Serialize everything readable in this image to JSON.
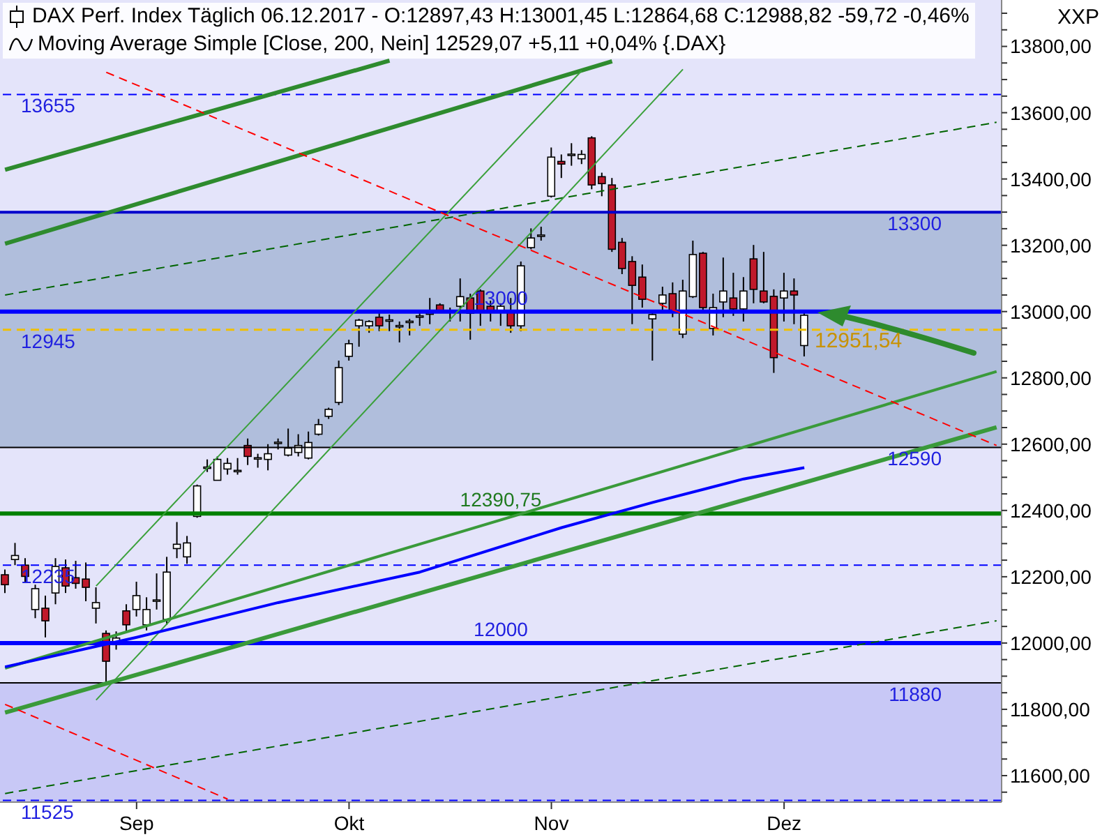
{
  "chart_data": {
    "type": "candlestick",
    "title": "DAX Perf. Index Täglich 06.12.2017 - O:12897,43 H:13001,45 L:12864,68 C:12988,82 -59,72 -0,46%",
    "subtitle": "Moving Average Simple [Close, 200, Nein] 12529,07 +5,11 +0,04% {.DAX}",
    "ylabel": "XXP",
    "categories": [
      null,
      null,
      null,
      null,
      null,
      null,
      null,
      null,
      null,
      null,
      null,
      null,
      null,
      "Sep",
      null,
      null,
      null,
      null,
      null,
      null,
      null,
      null,
      null,
      null,
      null,
      null,
      null,
      null,
      null,
      null,
      null,
      null,
      null,
      null,
      "Okt",
      null,
      null,
      null,
      null,
      null,
      null,
      null,
      null,
      null,
      null,
      null,
      null,
      null,
      null,
      null,
      null,
      null,
      null,
      null,
      "Nov",
      null,
      null,
      null,
      null,
      null,
      null,
      null,
      null,
      null,
      null,
      null,
      null,
      null,
      null,
      null,
      null,
      null,
      null,
      null,
      null,
      null,
      null,
      "Dez",
      null,
      null,
      null,
      null,
      null,
      null,
      null,
      null,
      null,
      null,
      null,
      null,
      null,
      null,
      null,
      null,
      null,
      null,
      null,
      null,
      null
    ],
    "ohlc": [
      [
        12206,
        12222,
        12151,
        12176
      ],
      [
        12252,
        12302,
        12235,
        12264
      ],
      [
        12235,
        12256,
        12185,
        12201
      ],
      [
        12101,
        12176,
        12075,
        12164
      ],
      [
        12105,
        12143,
        12017,
        12067
      ],
      [
        12151,
        12256,
        12117,
        12231
      ],
      [
        12227,
        12252,
        12151,
        12172
      ],
      [
        12197,
        12248,
        12164,
        12180
      ],
      [
        12193,
        12243,
        12126,
        12168
      ],
      [
        12105,
        12168,
        12059,
        12122
      ],
      [
        12029,
        12038,
        11882,
        11945
      ],
      [
        11995,
        12035,
        11980,
        12015
      ],
      [
        12097,
        12117,
        12033,
        12055
      ],
      [
        12101,
        12185,
        12080,
        12143
      ],
      [
        12055,
        12138,
        12038,
        12101
      ],
      [
        12126,
        12210,
        12101,
        12130
      ],
      [
        12071,
        12260,
        12055,
        12214
      ],
      [
        12285,
        12365,
        12256,
        12298
      ],
      [
        12260,
        12323,
        12239,
        12302
      ],
      [
        12382,
        12478,
        12378,
        12474
      ],
      [
        12527,
        12554,
        12516,
        12531
      ],
      [
        12491,
        12563,
        12491,
        12554
      ],
      [
        12525,
        12558,
        12508,
        12542
      ],
      [
        12520,
        12558,
        12508,
        12521
      ],
      [
        12596,
        12617,
        12537,
        12563
      ],
      [
        12558,
        12571,
        12529,
        12559
      ],
      [
        12554,
        12600,
        12521,
        12571
      ],
      [
        12605,
        12617,
        12584,
        12606
      ],
      [
        12567,
        12647,
        12563,
        12588
      ],
      [
        12575,
        12630,
        12563,
        12596
      ],
      [
        12558,
        12638,
        12554,
        12605
      ],
      [
        12630,
        12676,
        12626,
        12659
      ],
      [
        12684,
        12710,
        12676,
        12705
      ],
      [
        12726,
        12852,
        12718,
        12831
      ],
      [
        12865,
        12915,
        12852,
        12903
      ],
      [
        12957,
        12978,
        12894,
        12974
      ],
      [
        12957,
        12974,
        12936,
        12970
      ],
      [
        12983,
        12995,
        12941,
        12957
      ],
      [
        12973,
        12991,
        12941,
        12975
      ],
      [
        12956,
        12970,
        12907,
        12958
      ],
      [
        12969,
        12978,
        12928,
        12971
      ],
      [
        12983,
        12995,
        12957,
        12987
      ],
      [
        12994,
        13041,
        12962,
        12996
      ],
      [
        13020,
        13025,
        13000,
        13004
      ],
      [
        12999,
        13012,
        12970,
        13001
      ],
      [
        13016,
        13100,
        12970,
        13045
      ],
      [
        13041,
        13054,
        12915,
        12995
      ],
      [
        13062,
        13067,
        12957,
        13004
      ],
      [
        13016,
        13033,
        12970,
        13004
      ],
      [
        13004,
        13025,
        12957,
        13016
      ],
      [
        12999,
        13041,
        12936,
        12957
      ],
      [
        12957,
        13151,
        12941,
        13138
      ],
      [
        13193,
        13251,
        13188,
        13222
      ],
      [
        13229,
        13256,
        13214,
        13231
      ],
      [
        13348,
        13495,
        13344,
        13466
      ],
      [
        13453,
        13474,
        13403,
        13445
      ],
      [
        13473,
        13508,
        13440,
        13475
      ],
      [
        13461,
        13487,
        13445,
        13474
      ],
      [
        13524,
        13529,
        13369,
        13382
      ],
      [
        13407,
        13419,
        13348,
        13386
      ],
      [
        13382,
        13403,
        13180,
        13188
      ],
      [
        13209,
        13222,
        13113,
        13130
      ],
      [
        13151,
        13167,
        12962,
        13079
      ],
      [
        13104,
        13142,
        13012,
        13037
      ],
      [
        12978,
        12995,
        12852,
        12991
      ],
      [
        13025,
        13075,
        13004,
        13050
      ],
      [
        13054,
        13088,
        12983,
        13000
      ],
      [
        12932,
        13096,
        12920,
        13062
      ],
      [
        13045,
        13214,
        13041,
        13172
      ],
      [
        13176,
        13180,
        13004,
        13012
      ],
      [
        12949,
        13054,
        12928,
        13012
      ],
      [
        13029,
        13163,
        12983,
        13062
      ],
      [
        13041,
        13117,
        12987,
        13008
      ],
      [
        13008,
        13104,
        12970,
        13062
      ],
      [
        13159,
        13201,
        13025,
        13067
      ],
      [
        13062,
        13180,
        13025,
        13029
      ],
      [
        13046,
        13067,
        12815,
        12861
      ],
      [
        13041,
        13117,
        12970,
        13062
      ],
      [
        13062,
        13100,
        12962,
        13050
      ],
      [
        12897.43,
        13001.45,
        12864.68,
        12988.82
      ],
      null,
      null,
      null,
      null,
      null,
      null,
      null,
      null,
      null,
      null,
      null,
      null,
      null,
      null,
      null,
      null,
      null,
      null,
      null
    ],
    "series": [
      {
        "type": "line",
        "color": "#2e8b2e",
        "line_style": "solid",
        "values": [
          13428,
          null,
          null,
          null,
          null,
          null,
          null,
          null,
          null,
          null,
          null,
          null,
          null,
          null,
          null,
          null,
          null,
          null,
          null,
          null,
          null,
          null,
          null,
          null,
          null,
          null,
          null,
          null,
          null,
          null,
          null,
          null,
          null,
          null,
          null,
          null,
          null,
          null,
          13757,
          null,
          null,
          null,
          null,
          null,
          null,
          null,
          null,
          null,
          null,
          null,
          null,
          null,
          null,
          null,
          null,
          null,
          null,
          null,
          null,
          null,
          null,
          null,
          null,
          null,
          null,
          null,
          null,
          null,
          null,
          null,
          null,
          null,
          null,
          null,
          null,
          null,
          null,
          null,
          null,
          null,
          null,
          null,
          null,
          null,
          null,
          null,
          null,
          null,
          null,
          null,
          null,
          null,
          null,
          null,
          null,
          null,
          null,
          null,
          null
        ]
      },
      {
        "type": "line",
        "color": "#2e8b2e",
        "line_style": "solid",
        "values": [
          13205,
          null,
          null,
          null,
          null,
          null,
          null,
          null,
          null,
          null,
          null,
          null,
          null,
          null,
          null,
          null,
          null,
          null,
          null,
          null,
          null,
          null,
          null,
          null,
          null,
          null,
          null,
          null,
          null,
          null,
          null,
          null,
          null,
          null,
          null,
          null,
          null,
          null,
          null,
          null,
          null,
          null,
          null,
          null,
          null,
          null,
          null,
          null,
          null,
          null,
          null,
          null,
          null,
          null,
          null,
          null,
          null,
          null,
          null,
          null,
          13755,
          null,
          null,
          null,
          null,
          null,
          null,
          null,
          null,
          null,
          null,
          null,
          null,
          null,
          null,
          null,
          null,
          null,
          null,
          null,
          null,
          null,
          null,
          null,
          null,
          null,
          null,
          null,
          null,
          null,
          null,
          null,
          null,
          null,
          null,
          null,
          null,
          null,
          null
        ]
      },
      {
        "type": "line",
        "color": "#006400",
        "line_style": "dashed",
        "values": [
          13050,
          null,
          null,
          null,
          null,
          null,
          null,
          null,
          null,
          null,
          null,
          null,
          null,
          null,
          null,
          null,
          null,
          null,
          null,
          null,
          null,
          null,
          null,
          null,
          null,
          null,
          null,
          null,
          null,
          null,
          null,
          null,
          null,
          null,
          null,
          null,
          null,
          null,
          null,
          null,
          null,
          null,
          null,
          null,
          null,
          null,
          null,
          null,
          null,
          null,
          null,
          null,
          null,
          null,
          null,
          null,
          null,
          null,
          null,
          null,
          null,
          null,
          null,
          null,
          null,
          null,
          null,
          null,
          null,
          null,
          null,
          null,
          null,
          null,
          null,
          null,
          null,
          null,
          null,
          null,
          null,
          null,
          null,
          null,
          null,
          null,
          null,
          null,
          null,
          null,
          null,
          null,
          null,
          null,
          null,
          null,
          null,
          null,
          13571
        ]
      },
      {
        "type": "line",
        "color": "#3aa03a",
        "line_style": "solid",
        "values": [
          null,
          null,
          null,
          null,
          null,
          null,
          null,
          null,
          null,
          12172,
          null,
          null,
          null,
          null,
          null,
          null,
          null,
          null,
          null,
          null,
          null,
          null,
          null,
          null,
          null,
          null,
          null,
          null,
          null,
          null,
          null,
          null,
          null,
          null,
          null,
          null,
          null,
          null,
          null,
          null,
          null,
          null,
          null,
          null,
          null,
          null,
          null,
          null,
          null,
          null,
          null,
          null,
          null,
          null,
          null,
          null,
          null,
          13727,
          null,
          null,
          null,
          null,
          null,
          null,
          null,
          null,
          null,
          null,
          null,
          null,
          null,
          null,
          null,
          null,
          null,
          null,
          null,
          null,
          null,
          null,
          null,
          null,
          null,
          null,
          null,
          null,
          null,
          null,
          null,
          null,
          null,
          null,
          null,
          null,
          null,
          null,
          null,
          null,
          null
        ]
      },
      {
        "type": "line",
        "color": "#3aa03a",
        "line_style": "solid",
        "values": [
          null,
          null,
          null,
          null,
          null,
          null,
          null,
          null,
          null,
          11828,
          null,
          null,
          null,
          null,
          null,
          null,
          null,
          null,
          null,
          null,
          null,
          null,
          null,
          null,
          null,
          null,
          null,
          null,
          null,
          null,
          null,
          null,
          null,
          null,
          null,
          null,
          null,
          null,
          null,
          null,
          null,
          null,
          null,
          null,
          null,
          null,
          null,
          null,
          null,
          null,
          null,
          null,
          null,
          null,
          null,
          null,
          null,
          null,
          null,
          null,
          null,
          null,
          null,
          null,
          null,
          null,
          null,
          13731,
          null,
          null,
          null,
          null,
          null,
          null,
          null,
          null,
          null,
          null,
          null,
          null,
          null,
          null,
          null,
          null,
          null,
          null,
          null,
          null,
          null,
          null,
          null,
          null,
          null,
          null,
          null,
          null,
          null,
          null,
          null
        ]
      },
      {
        "type": "line",
        "color": "#3a9a3a",
        "line_style": "solid",
        "values": [
          11924,
          null,
          null,
          null,
          null,
          null,
          null,
          null,
          null,
          null,
          null,
          null,
          null,
          null,
          null,
          null,
          null,
          null,
          null,
          null,
          null,
          null,
          null,
          null,
          null,
          null,
          null,
          null,
          null,
          null,
          null,
          null,
          null,
          null,
          null,
          null,
          null,
          null,
          null,
          null,
          null,
          null,
          null,
          null,
          null,
          null,
          null,
          null,
          null,
          null,
          null,
          null,
          null,
          null,
          null,
          null,
          null,
          null,
          null,
          null,
          null,
          null,
          null,
          null,
          null,
          null,
          null,
          null,
          null,
          null,
          null,
          null,
          null,
          null,
          null,
          null,
          null,
          null,
          null,
          null,
          null,
          null,
          null,
          null,
          null,
          null,
          null,
          null,
          null,
          null,
          null,
          null,
          null,
          null,
          null,
          null,
          null,
          null,
          12819
        ]
      },
      {
        "type": "line",
        "color": "#3a9a3a",
        "line_style": "solid",
        "values": [
          11790,
          null,
          null,
          null,
          null,
          null,
          null,
          null,
          null,
          null,
          null,
          null,
          null,
          null,
          null,
          null,
          null,
          null,
          null,
          null,
          null,
          null,
          null,
          null,
          null,
          null,
          null,
          null,
          null,
          null,
          null,
          null,
          null,
          null,
          null,
          null,
          null,
          null,
          null,
          null,
          null,
          null,
          null,
          null,
          null,
          null,
          null,
          null,
          null,
          null,
          null,
          null,
          null,
          null,
          null,
          null,
          null,
          null,
          null,
          null,
          null,
          null,
          null,
          null,
          null,
          null,
          null,
          null,
          null,
          null,
          null,
          null,
          null,
          null,
          null,
          null,
          null,
          null,
          null,
          null,
          null,
          null,
          null,
          null,
          null,
          null,
          null,
          null,
          null,
          null,
          null,
          null,
          null,
          null,
          null,
          null,
          null,
          null,
          12651
        ]
      },
      {
        "type": "line",
        "color": "#006400",
        "line_style": "dashed",
        "values": [
          11546,
          null,
          null,
          null,
          null,
          null,
          null,
          null,
          null,
          null,
          null,
          null,
          null,
          null,
          null,
          null,
          null,
          null,
          null,
          null,
          null,
          null,
          null,
          null,
          null,
          null,
          null,
          null,
          null,
          null,
          null,
          null,
          null,
          null,
          null,
          null,
          null,
          null,
          null,
          null,
          null,
          null,
          null,
          null,
          null,
          null,
          null,
          null,
          null,
          null,
          null,
          null,
          null,
          null,
          null,
          null,
          null,
          null,
          null,
          null,
          null,
          null,
          null,
          null,
          null,
          null,
          null,
          null,
          null,
          null,
          null,
          null,
          null,
          null,
          null,
          null,
          null,
          null,
          null,
          null,
          null,
          null,
          null,
          null,
          null,
          null,
          null,
          null,
          null,
          null,
          null,
          null,
          null,
          null,
          null,
          null,
          null,
          null,
          12067
        ]
      },
      {
        "type": "line",
        "color": "#ff0000",
        "line_style": "dashed",
        "values": [
          null,
          null,
          null,
          null,
          null,
          null,
          null,
          null,
          null,
          null,
          13722,
          null,
          null,
          null,
          null,
          null,
          null,
          null,
          null,
          null,
          null,
          null,
          null,
          null,
          null,
          null,
          null,
          null,
          null,
          null,
          null,
          null,
          null,
          null,
          null,
          null,
          null,
          null,
          null,
          null,
          null,
          null,
          null,
          null,
          null,
          null,
          null,
          null,
          null,
          null,
          null,
          null,
          null,
          null,
          null,
          null,
          null,
          null,
          null,
          null,
          null,
          null,
          null,
          null,
          null,
          null,
          null,
          null,
          null,
          null,
          null,
          null,
          null,
          null,
          null,
          null,
          null,
          null,
          null,
          null,
          null,
          null,
          null,
          null,
          null,
          null,
          null,
          null,
          null,
          null,
          null,
          null,
          null,
          null,
          null,
          null,
          null,
          null,
          12596
        ]
      },
      {
        "type": "line",
        "color": "#ff0000",
        "line_style": "dashed",
        "values": [
          11815,
          null,
          null,
          null,
          null,
          null,
          null,
          null,
          null,
          null,
          null,
          null,
          null,
          null,
          null,
          null,
          null,
          null,
          null,
          null,
          null,
          null,
          11529,
          null,
          null,
          null,
          null,
          null,
          null,
          null,
          null,
          null,
          null,
          null,
          null,
          null,
          null,
          null,
          null,
          null,
          null,
          null,
          null,
          null,
          null,
          null,
          null,
          null,
          null,
          null,
          null,
          null,
          null,
          null,
          null,
          null,
          null,
          null,
          null,
          null,
          null,
          null,
          null,
          null,
          null,
          null,
          null,
          null,
          null,
          null,
          null,
          null,
          null,
          null,
          null,
          null,
          null,
          null,
          null,
          null,
          null,
          null,
          null,
          null,
          null,
          null,
          null,
          null,
          null,
          null,
          null,
          null,
          null,
          null,
          null,
          null,
          null,
          null,
          null
        ]
      },
      {
        "type": "line",
        "color": "#0000ff",
        "line_style": "solid",
        "values": [
          11928,
          null,
          null,
          null,
          null,
          null,
          null,
          null,
          null,
          null,
          null,
          null,
          null,
          12017,
          null,
          null,
          null,
          null,
          null,
          null,
          null,
          null,
          null,
          null,
          null,
          null,
          null,
          12122,
          null,
          null,
          null,
          null,
          null,
          null,
          null,
          null,
          null,
          null,
          null,
          null,
          null,
          12214,
          null,
          null,
          null,
          null,
          null,
          null,
          null,
          null,
          null,
          null,
          null,
          null,
          null,
          12348,
          null,
          null,
          null,
          null,
          null,
          null,
          null,
          null,
          12424,
          null,
          null,
          null,
          null,
          null,
          null,
          null,
          null,
          12495,
          null,
          null,
          null,
          null,
          null,
          12529,
          null,
          null,
          null,
          null,
          null,
          null,
          null,
          null,
          null,
          null,
          null,
          null,
          null,
          null,
          null,
          null,
          null,
          null,
          null
        ]
      }
    ],
    "ref_lines": [
      {
        "axis": "y",
        "value": 13655,
        "label": "13655",
        "color": "#0000ff",
        "line_style": "dashed"
      },
      {
        "axis": "y",
        "value": 13300,
        "label": "13300",
        "color": "#0000cc",
        "line_style": "solid"
      },
      {
        "axis": "y",
        "value": 13000,
        "label": "13000",
        "color": "#0000ff",
        "line_style": "solid"
      },
      {
        "axis": "y",
        "value": 12945,
        "label": "12945",
        "color": "#f0c000",
        "line_style": "dashed"
      },
      {
        "axis": "y",
        "value": 12590,
        "label": "12590",
        "color": "#000000",
        "line_style": "solid"
      },
      {
        "axis": "y",
        "value": 12390.75,
        "label": "12390,75",
        "color": "#008000",
        "line_style": "solid"
      },
      {
        "axis": "y",
        "value": 12235,
        "label": "12235",
        "color": "#0000ff",
        "line_style": "dashed"
      },
      {
        "axis": "y",
        "value": 12000,
        "label": "12000",
        "color": "#0000ff",
        "line_style": "solid"
      },
      {
        "axis": "y",
        "value": 11880,
        "label": "11880",
        "color": "#000000",
        "line_style": "solid"
      },
      {
        "axis": "y",
        "value": 11525,
        "label": "11525",
        "color": "#0000ff",
        "line_style": "dashed"
      }
    ],
    "bands": [
      {
        "axis": "y",
        "from": 12590,
        "to": 13300,
        "color": "#b0bedc"
      },
      {
        "axis": "y",
        "from": 11520,
        "to": 11880,
        "color": "#c8c8f6"
      }
    ],
    "annotations": [
      "12951,54"
    ],
    "ylim": [
      11520,
      13940
    ],
    "yticks": [
      {
        "value": 11550,
        "label": null
      },
      {
        "value": 11600,
        "label": "11600,00"
      },
      {
        "value": 11650,
        "label": null
      },
      {
        "value": 11700,
        "label": null
      },
      {
        "value": 11750,
        "label": null
      },
      {
        "value": 11800,
        "label": "11800,00"
      },
      {
        "value": 11850,
        "label": null
      },
      {
        "value": 11900,
        "label": null
      },
      {
        "value": 11950,
        "label": null
      },
      {
        "value": 12000,
        "label": "12000,00"
      },
      {
        "value": 12050,
        "label": null
      },
      {
        "value": 12100,
        "label": null
      },
      {
        "value": 12150,
        "label": null
      },
      {
        "value": 12200,
        "label": "12200,00"
      },
      {
        "value": 12250,
        "label": null
      },
      {
        "value": 12300,
        "label": null
      },
      {
        "value": 12350,
        "label": null
      },
      {
        "value": 12400,
        "label": "12400,00"
      },
      {
        "value": 12450,
        "label": null
      },
      {
        "value": 12500,
        "label": null
      },
      {
        "value": 12550,
        "label": null
      },
      {
        "value": 12600,
        "label": "12600,00"
      },
      {
        "value": 12650,
        "label": null
      },
      {
        "value": 12700,
        "label": null
      },
      {
        "value": 12750,
        "label": null
      },
      {
        "value": 12800,
        "label": "12800,00"
      },
      {
        "value": 12850,
        "label": null
      },
      {
        "value": 12900,
        "label": null
      },
      {
        "value": 12950,
        "label": null
      },
      {
        "value": 13000,
        "label": "13000,00"
      },
      {
        "value": 13050,
        "label": null
      },
      {
        "value": 13100,
        "label": null
      },
      {
        "value": 13150,
        "label": null
      },
      {
        "value": 13200,
        "label": "13200,00"
      },
      {
        "value": 13250,
        "label": null
      },
      {
        "value": 13300,
        "label": null
      },
      {
        "value": 13350,
        "label": null
      },
      {
        "value": 13400,
        "label": "13400,00"
      },
      {
        "value": 13450,
        "label": null
      },
      {
        "value": 13500,
        "label": null
      },
      {
        "value": 13550,
        "label": null
      },
      {
        "value": 13600,
        "label": "13600,00"
      },
      {
        "value": 13650,
        "label": null
      },
      {
        "value": 13700,
        "label": null
      },
      {
        "value": 13750,
        "label": null
      },
      {
        "value": 13800,
        "label": "13800,00"
      },
      {
        "value": 13850,
        "label": null
      },
      {
        "value": 13900,
        "label": null
      }
    ]
  }
}
